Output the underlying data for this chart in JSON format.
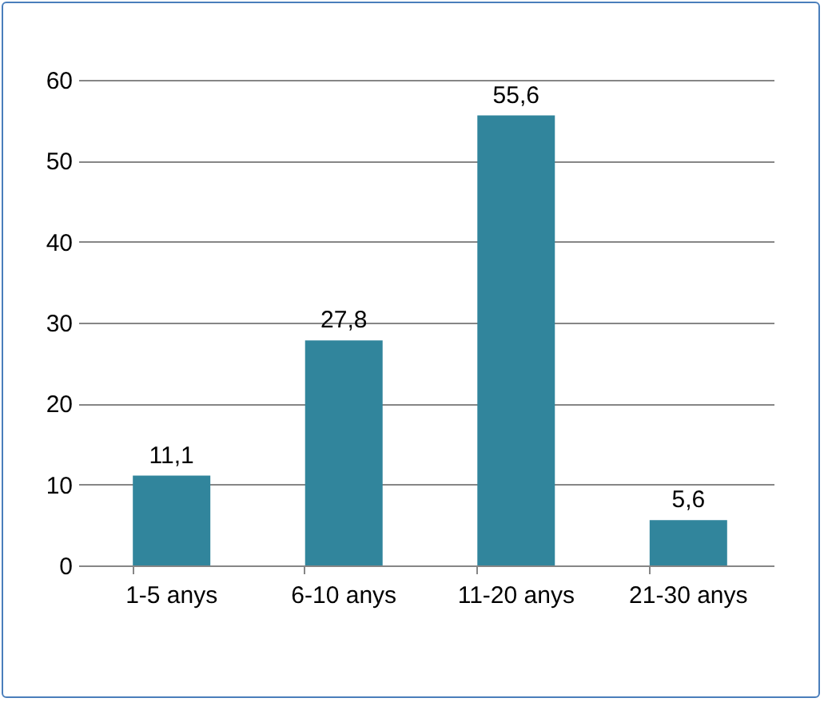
{
  "chart_data": {
    "type": "bar",
    "categories": [
      "1-5 anys",
      "6-10 anys",
      "11-20 anys",
      "21-30 anys"
    ],
    "values": [
      11.1,
      27.8,
      55.6,
      5.6
    ],
    "value_labels": [
      "11,1",
      "27,8",
      "55,6",
      "5,6"
    ],
    "color": "#31859c",
    "ylim": [
      0,
      60
    ],
    "yticks": [
      0,
      10,
      20,
      30,
      40,
      50,
      60
    ],
    "grid": "y"
  }
}
